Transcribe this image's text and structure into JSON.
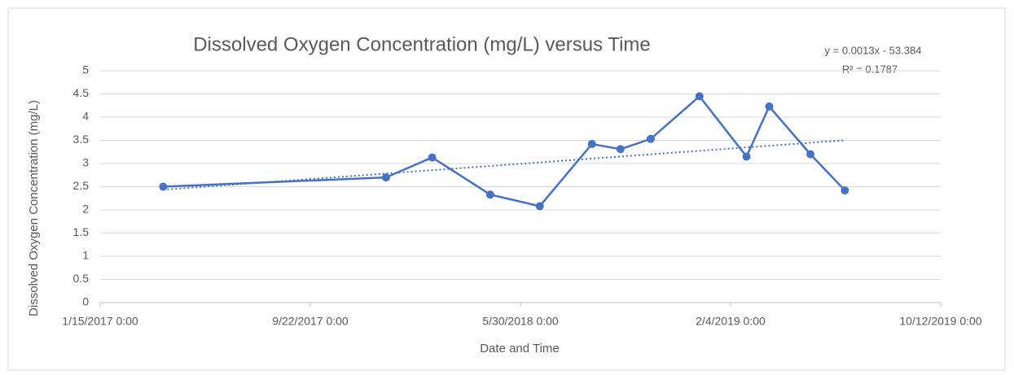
{
  "chart_data": {
    "type": "line",
    "title": "Dissolved Oxygen Concentration (mg/L) versus Time",
    "x_label": "Date and Time",
    "y_label": "Dissolved Oxygen Concentration (mg/L)",
    "x": [
      42825,
      43090,
      43145,
      43214,
      43273,
      43335,
      43369,
      43405,
      43463,
      43519,
      43546,
      43595,
      43636
    ],
    "series": [
      {
        "name": "Dissolved Oxygen",
        "color": "#4472c4",
        "values": [
          2.5,
          2.7,
          3.13,
          2.33,
          2.08,
          3.42,
          3.31,
          3.53,
          4.45,
          3.15,
          4.23,
          3.2,
          2.42
        ]
      }
    ],
    "xlim": [
      42750,
      43750
    ],
    "xticks": [
      {
        "value": 42750,
        "label": "1/15/2017 0:00"
      },
      {
        "value": 43000,
        "label": "9/22/2017 0:00"
      },
      {
        "value": 43250,
        "label": "5/30/2018 0:00"
      },
      {
        "value": 43500,
        "label": "2/4/2019 0:00"
      },
      {
        "value": 43750,
        "label": "10/12/2019 0:00"
      }
    ],
    "ylim": [
      0,
      5
    ],
    "yticks": [
      0,
      0.5,
      1,
      1.5,
      2,
      2.5,
      3,
      3.5,
      4,
      4.5,
      5
    ],
    "grid": true,
    "trendline": {
      "equation": "y = 0.0013x - 53.384",
      "r_squared": "R² = 0.1787"
    }
  }
}
